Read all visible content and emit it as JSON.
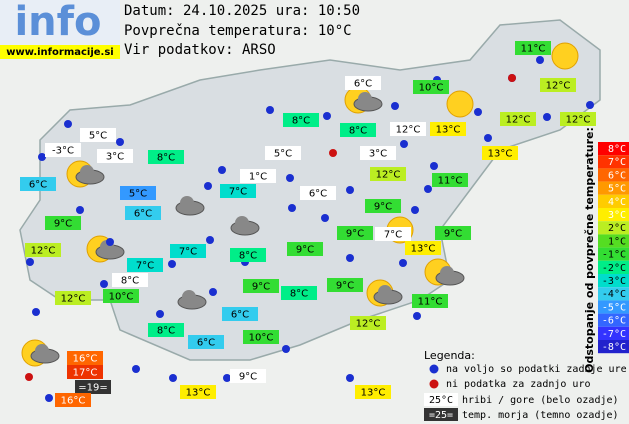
{
  "header": {
    "logo": "info",
    "site": "www.informacije.si",
    "date": "Datum: 24.10.2025 ura: 10:50",
    "average": "Povprečna temperatura: 10°C",
    "source": "Vir podatkov: ARSO"
  },
  "stations": [
    {
      "text": "11°C",
      "color": "#33dd33"
    },
    {
      "text": "6°C",
      "color": "#ffffff"
    },
    {
      "text": "10°C",
      "color": "#33dd33"
    },
    {
      "text": "12°C",
      "color": "#bbee22"
    },
    {
      "text": "8°C",
      "color": "#00ee88"
    },
    {
      "text": "8°C",
      "color": "#00ee88"
    },
    {
      "text": "12°C",
      "color": "#ffffff"
    },
    {
      "text": "13°C",
      "color": "#ffee00"
    },
    {
      "text": "12°C",
      "color": "#bbee22"
    },
    {
      "text": "12°C",
      "color": "#bbee22"
    },
    {
      "text": "5°C",
      "color": "#ffffff"
    },
    {
      "text": "-3°C",
      "color": "#ffffff"
    },
    {
      "text": "3°C",
      "color": "#ffffff"
    },
    {
      "text": "8°C",
      "color": "#00ee88"
    },
    {
      "text": "5°C",
      "color": "#ffffff"
    },
    {
      "text": "3°C",
      "color": "#ffffff"
    },
    {
      "text": "13°C",
      "color": "#ffee00"
    },
    {
      "text": "1°C",
      "color": "#ffffff"
    },
    {
      "text": "12°C",
      "color": "#bbee22"
    },
    {
      "text": "11°C",
      "color": "#33dd33"
    },
    {
      "text": "6°C",
      "color": "#33ccee"
    },
    {
      "text": "5°C",
      "color": "#3399ff"
    },
    {
      "text": "7°C",
      "color": "#00ddcc"
    },
    {
      "text": "6°C",
      "color": "#ffffff"
    },
    {
      "text": "6°C",
      "color": "#33ccee"
    },
    {
      "text": "9°C",
      "color": "#33dd33"
    },
    {
      "text": "9°C",
      "color": "#33dd33"
    },
    {
      "text": "12°C",
      "color": "#bbee22"
    },
    {
      "text": "7°C",
      "color": "#00ddcc"
    },
    {
      "text": "8°C",
      "color": "#00ee88"
    },
    {
      "text": "9°C",
      "color": "#33dd33"
    },
    {
      "text": "9°C",
      "color": "#33dd33"
    },
    {
      "text": "7°C",
      "color": "#ffffff"
    },
    {
      "text": "13°C",
      "color": "#ffee00"
    },
    {
      "text": "9°C",
      "color": "#33dd33"
    },
    {
      "text": "7°C",
      "color": "#00ddcc"
    },
    {
      "text": "8°C",
      "color": "#ffffff"
    },
    {
      "text": "9°C",
      "color": "#33dd33"
    },
    {
      "text": "8°C",
      "color": "#00ee88"
    },
    {
      "text": "9°C",
      "color": "#33dd33"
    },
    {
      "text": "12°C",
      "color": "#bbee22"
    },
    {
      "text": "10°C",
      "color": "#33dd33"
    },
    {
      "text": "11°C",
      "color": "#33dd33"
    },
    {
      "text": "6°C",
      "color": "#33ccee"
    },
    {
      "text": "12°C",
      "color": "#bbee22"
    },
    {
      "text": "8°C",
      "color": "#00ee88"
    },
    {
      "text": "6°C",
      "color": "#33ccee"
    },
    {
      "text": "10°C",
      "color": "#33dd33"
    },
    {
      "text": "16°C",
      "color": "#ff6600"
    },
    {
      "text": "17°C",
      "color": "#ee3300"
    },
    {
      "text": "=19=",
      "color": "#333333"
    },
    {
      "text": "16°C",
      "color": "#ff6600"
    },
    {
      "text": "9°C",
      "color": "#ffffff"
    },
    {
      "text": "13°C",
      "color": "#ffee00"
    },
    {
      "text": "13°C",
      "color": "#ffee00"
    }
  ],
  "scale": {
    "title": "Odstopanje od povprečne temperature:",
    "steps": [
      {
        "label": "8°C",
        "color": "#ff0000"
      },
      {
        "label": "7°C",
        "color": "#ff3300"
      },
      {
        "label": "6°C",
        "color": "#ff6600"
      },
      {
        "label": "5°C",
        "color": "#ff9900"
      },
      {
        "label": "4°C",
        "color": "#ffcc00"
      },
      {
        "label": "3°C",
        "color": "#ffee00"
      },
      {
        "label": "2°C",
        "color": "#bbee22"
      },
      {
        "label": "1°C",
        "color": "#55dd22"
      },
      {
        "label": "-1°C",
        "color": "#33dd33"
      },
      {
        "label": "-2°C",
        "color": "#00ee88"
      },
      {
        "label": "-3°C",
        "color": "#00ddcc"
      },
      {
        "label": "-4°C",
        "color": "#33ccee"
      },
      {
        "label": "-5°C",
        "color": "#3399ff"
      },
      {
        "label": "-6°C",
        "color": "#3366ff"
      },
      {
        "label": "-7°C",
        "color": "#3333ff"
      },
      {
        "label": "-8°C",
        "color": "#2222cc"
      }
    ]
  },
  "legend": {
    "title": "Legenda:",
    "blue": "na voljo so podatki zadnje ure",
    "red": "ni podatka za zadnjo uro",
    "hill_sample": "25°C",
    "hill": "hribi / gore (belo ozadje)",
    "sea_sample": "=25=",
    "sea": "temp. morja (temno ozadje)"
  }
}
